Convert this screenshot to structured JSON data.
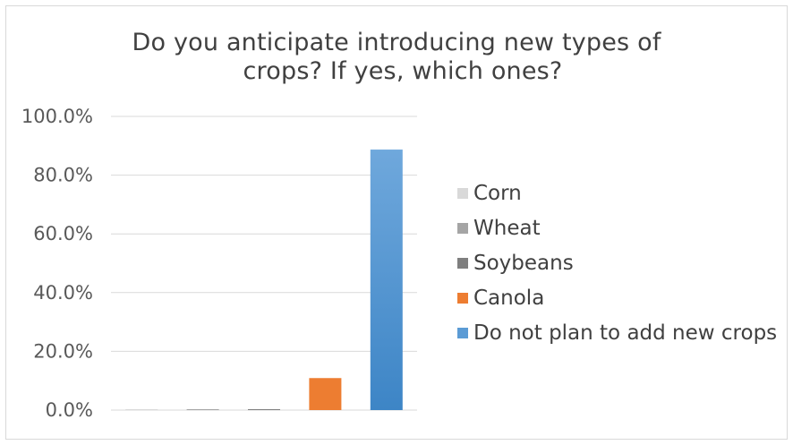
{
  "chart_data": {
    "type": "bar",
    "title_lines": [
      "Do you anticipate introducing new types of",
      "crops? If yes, which ones?"
    ],
    "categories": [
      "Corn",
      "Wheat",
      "Soybeans",
      "Canola",
      "Do not plan to add new crops"
    ],
    "values": [
      0.0,
      0.0,
      0.0,
      10.9,
      88.7
    ],
    "colors": [
      "#d9d9d9",
      "#a5a5a5",
      "#7f7f7f",
      "#ed7d31",
      "#5b9bd5"
    ],
    "ylim": [
      0,
      100
    ],
    "yticks": [
      "0.0%",
      "20.0%",
      "40.0%",
      "60.0%",
      "80.0%",
      "100.0%"
    ],
    "grid": true,
    "legend_position": "right",
    "xlabel": "",
    "ylabel": ""
  }
}
